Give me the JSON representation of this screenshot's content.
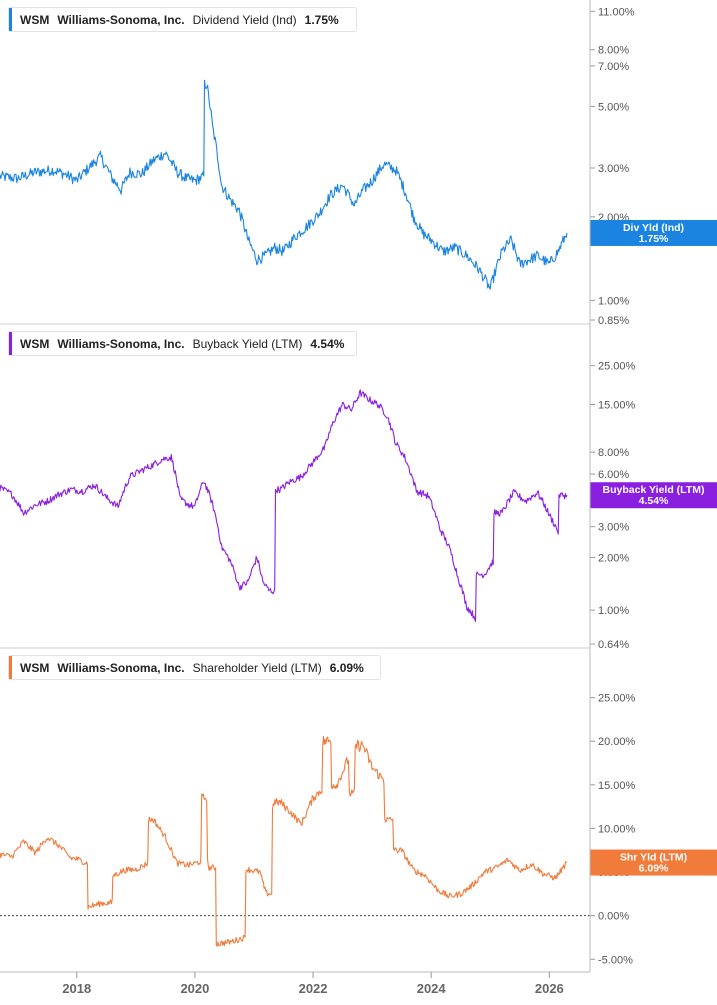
{
  "chart_data": [
    {
      "type": "line",
      "legend": {
        "ticker": "WSM",
        "company": "Williams-Sonoma, Inc.",
        "metric": "Dividend Yield (Ind)",
        "value": "1.75%"
      },
      "badge": {
        "line1": "Div Yld (Ind)",
        "line2": "1.75%"
      },
      "color": "#1a84e0",
      "scale": "log",
      "ylim": [
        0.85,
        11.5
      ],
      "yticks": [
        {
          "v": 11,
          "label": "11.00%"
        },
        {
          "v": 8,
          "label": "8.00%"
        },
        {
          "v": 7,
          "label": "7.00%"
        },
        {
          "v": 5,
          "label": "5.00%"
        },
        {
          "v": 3,
          "label": "3.00%"
        },
        {
          "v": 2,
          "label": "2.00%"
        },
        {
          "v": 1,
          "label": "1.00%"
        },
        {
          "v": 0.85,
          "label": "0.85%"
        }
      ],
      "series": [
        {
          "x": [
            2016.7,
            2017.0,
            2017.3,
            2017.6,
            2017.8,
            2018.0,
            2018.2,
            2018.4,
            2018.6,
            2018.75,
            2018.9,
            2019.1,
            2019.3,
            2019.5,
            2019.7,
            2019.85,
            2020.0,
            2020.15,
            2020.2,
            2020.3,
            2020.45,
            2020.6,
            2020.75,
            2020.9,
            2021.05,
            2021.2,
            2021.35,
            2021.5,
            2021.7,
            2021.9,
            2022.1,
            2022.3,
            2022.5,
            2022.7,
            2022.85,
            2023.0,
            2023.2,
            2023.4,
            2023.55,
            2023.7,
            2023.85,
            2024.0,
            2024.2,
            2024.4,
            2024.6,
            2024.8,
            2025.0,
            2025.2,
            2025.35,
            2025.5,
            2025.65,
            2025.8,
            2026.0,
            2026.15,
            2026.3
          ],
          "y": [
            2.8,
            2.75,
            2.9,
            2.95,
            2.85,
            2.7,
            3.0,
            3.3,
            2.75,
            2.5,
            2.9,
            2.85,
            3.2,
            3.4,
            2.9,
            2.75,
            2.7,
            2.8,
            6.0,
            4.2,
            2.6,
            2.3,
            2.1,
            1.65,
            1.4,
            1.45,
            1.55,
            1.5,
            1.7,
            1.85,
            2.05,
            2.4,
            2.6,
            2.2,
            2.5,
            2.7,
            3.1,
            2.95,
            2.5,
            2.0,
            1.75,
            1.65,
            1.5,
            1.55,
            1.45,
            1.3,
            1.1,
            1.5,
            1.65,
            1.35,
            1.4,
            1.45,
            1.35,
            1.5,
            1.75
          ]
        }
      ]
    },
    {
      "type": "line",
      "legend": {
        "ticker": "WSM",
        "company": "Williams-Sonoma, Inc.",
        "metric": "Buyback Yield (LTM)",
        "value": "4.54%"
      },
      "badge": {
        "line1": "Buyback Yield (LTM)",
        "line2": "4.54%"
      },
      "color": "#8b1fe0",
      "scale": "log",
      "ylim": [
        0.64,
        40
      ],
      "yticks": [
        {
          "v": 25,
          "label": "25.00%"
        },
        {
          "v": 15,
          "label": "15.00%"
        },
        {
          "v": 8,
          "label": "8.00%"
        },
        {
          "v": 6,
          "label": "6.00%"
        },
        {
          "v": 3,
          "label": "3.00%"
        },
        {
          "v": 2,
          "label": "2.00%"
        },
        {
          "v": 1,
          "label": "1.00%"
        },
        {
          "v": 0.64,
          "label": "0.64%"
        }
      ],
      "series": [
        {
          "x": [
            2016.7,
            2016.9,
            2017.1,
            2017.3,
            2017.5,
            2017.7,
            2017.9,
            2018.1,
            2018.3,
            2018.5,
            2018.7,
            2018.9,
            2019.1,
            2019.3,
            2019.45,
            2019.6,
            2019.75,
            2019.9,
            2020.0,
            2020.15,
            2020.3,
            2020.45,
            2020.6,
            2020.75,
            2020.9,
            2021.05,
            2021.15,
            2021.25,
            2021.35,
            2021.45,
            2021.6,
            2021.8,
            2022.0,
            2022.2,
            2022.35,
            2022.5,
            2022.65,
            2022.8,
            2022.95,
            2023.1,
            2023.25,
            2023.4,
            2023.55,
            2023.75,
            2023.95,
            2024.15,
            2024.3,
            2024.45,
            2024.6,
            2024.75,
            2024.9,
            2025.05,
            2025.2,
            2025.4,
            2025.6,
            2025.8,
            2026.0,
            2026.15,
            2026.3
          ],
          "y": [
            5.0,
            4.6,
            3.6,
            4.0,
            4.2,
            4.6,
            4.9,
            4.8,
            5.2,
            4.4,
            3.9,
            5.8,
            6.3,
            6.8,
            7.3,
            7.5,
            4.3,
            4.0,
            3.9,
            5.5,
            4.0,
            2.3,
            1.9,
            1.35,
            1.45,
            2.0,
            1.45,
            1.3,
            1.28,
            4.9,
            5.4,
            5.8,
            7.0,
            8.5,
            12.0,
            15.0,
            14.0,
            17.5,
            16.0,
            15.0,
            13.0,
            9.0,
            7.5,
            4.8,
            4.5,
            2.9,
            2.3,
            1.55,
            1.05,
            0.9,
            1.6,
            1.9,
            3.6,
            4.7,
            4.2,
            4.7,
            3.5,
            2.8,
            4.54
          ]
        }
      ]
    },
    {
      "type": "line",
      "legend": {
        "ticker": "WSM",
        "company": "Williams-Sonoma, Inc.",
        "metric": "Shareholder Yield (LTM)",
        "value": "6.09%"
      },
      "badge": {
        "line1": "Shr Yld (LTM)",
        "line2": "6.09%"
      },
      "color": "#f07b3b",
      "scale": "linear",
      "ylim": [
        -6,
        30
      ],
      "zero_line": true,
      "yticks": [
        {
          "v": 25,
          "label": "25.00%"
        },
        {
          "v": 20,
          "label": "20.00%"
        },
        {
          "v": 15,
          "label": "15.00%"
        },
        {
          "v": 10,
          "label": "10.00%"
        },
        {
          "v": 5,
          "label": "5.00%"
        },
        {
          "v": 0,
          "label": "0.00%"
        },
        {
          "v": -5,
          "label": "-5.00%"
        }
      ],
      "series": [
        {
          "x": [
            2016.7,
            2016.9,
            2017.1,
            2017.3,
            2017.5,
            2017.7,
            2017.9,
            2018.0,
            2018.18,
            2018.2,
            2018.4,
            2018.6,
            2018.62,
            2018.8,
            2019.0,
            2019.2,
            2019.3,
            2019.5,
            2019.7,
            2019.9,
            2020.1,
            2020.2,
            2020.35,
            2020.4,
            2020.6,
            2020.85,
            2020.9,
            2021.1,
            2021.2,
            2021.3,
            2021.45,
            2021.6,
            2021.8,
            2022.0,
            2022.15,
            2022.3,
            2022.4,
            2022.6,
            2022.7,
            2022.85,
            2023.0,
            2023.2,
            2023.35,
            2023.5,
            2023.7,
            2023.9,
            2024.1,
            2024.3,
            2024.5,
            2024.7,
            2024.9,
            2025.1,
            2025.3,
            2025.5,
            2025.7,
            2025.9,
            2026.1,
            2026.3
          ],
          "y": [
            7.0,
            6.8,
            8.5,
            7.2,
            9.0,
            8.0,
            6.6,
            6.5,
            6.0,
            1.0,
            1.4,
            1.5,
            4.6,
            5.2,
            5.3,
            6.0,
            11.0,
            9.0,
            6.0,
            5.8,
            6.2,
            13.5,
            5.5,
            -3.2,
            -3.0,
            -2.5,
            5.3,
            5.0,
            2.6,
            2.5,
            13.0,
            12.0,
            10.5,
            13.5,
            14.5,
            20.0,
            15.0,
            18.0,
            14.0,
            19.5,
            17.0,
            15.5,
            11.0,
            7.5,
            5.2,
            4.6,
            3.0,
            2.2,
            2.5,
            3.5,
            5.0,
            5.5,
            6.4,
            5.2,
            5.9,
            4.8,
            4.3,
            6.09
          ]
        }
      ]
    }
  ],
  "x_axis": {
    "ticks": [
      {
        "v": 2018,
        "label": "2018"
      },
      {
        "v": 2020,
        "label": "2020"
      },
      {
        "v": 2022,
        "label": "2022"
      },
      {
        "v": 2024,
        "label": "2024"
      },
      {
        "v": 2026,
        "label": "2026"
      }
    ]
  }
}
